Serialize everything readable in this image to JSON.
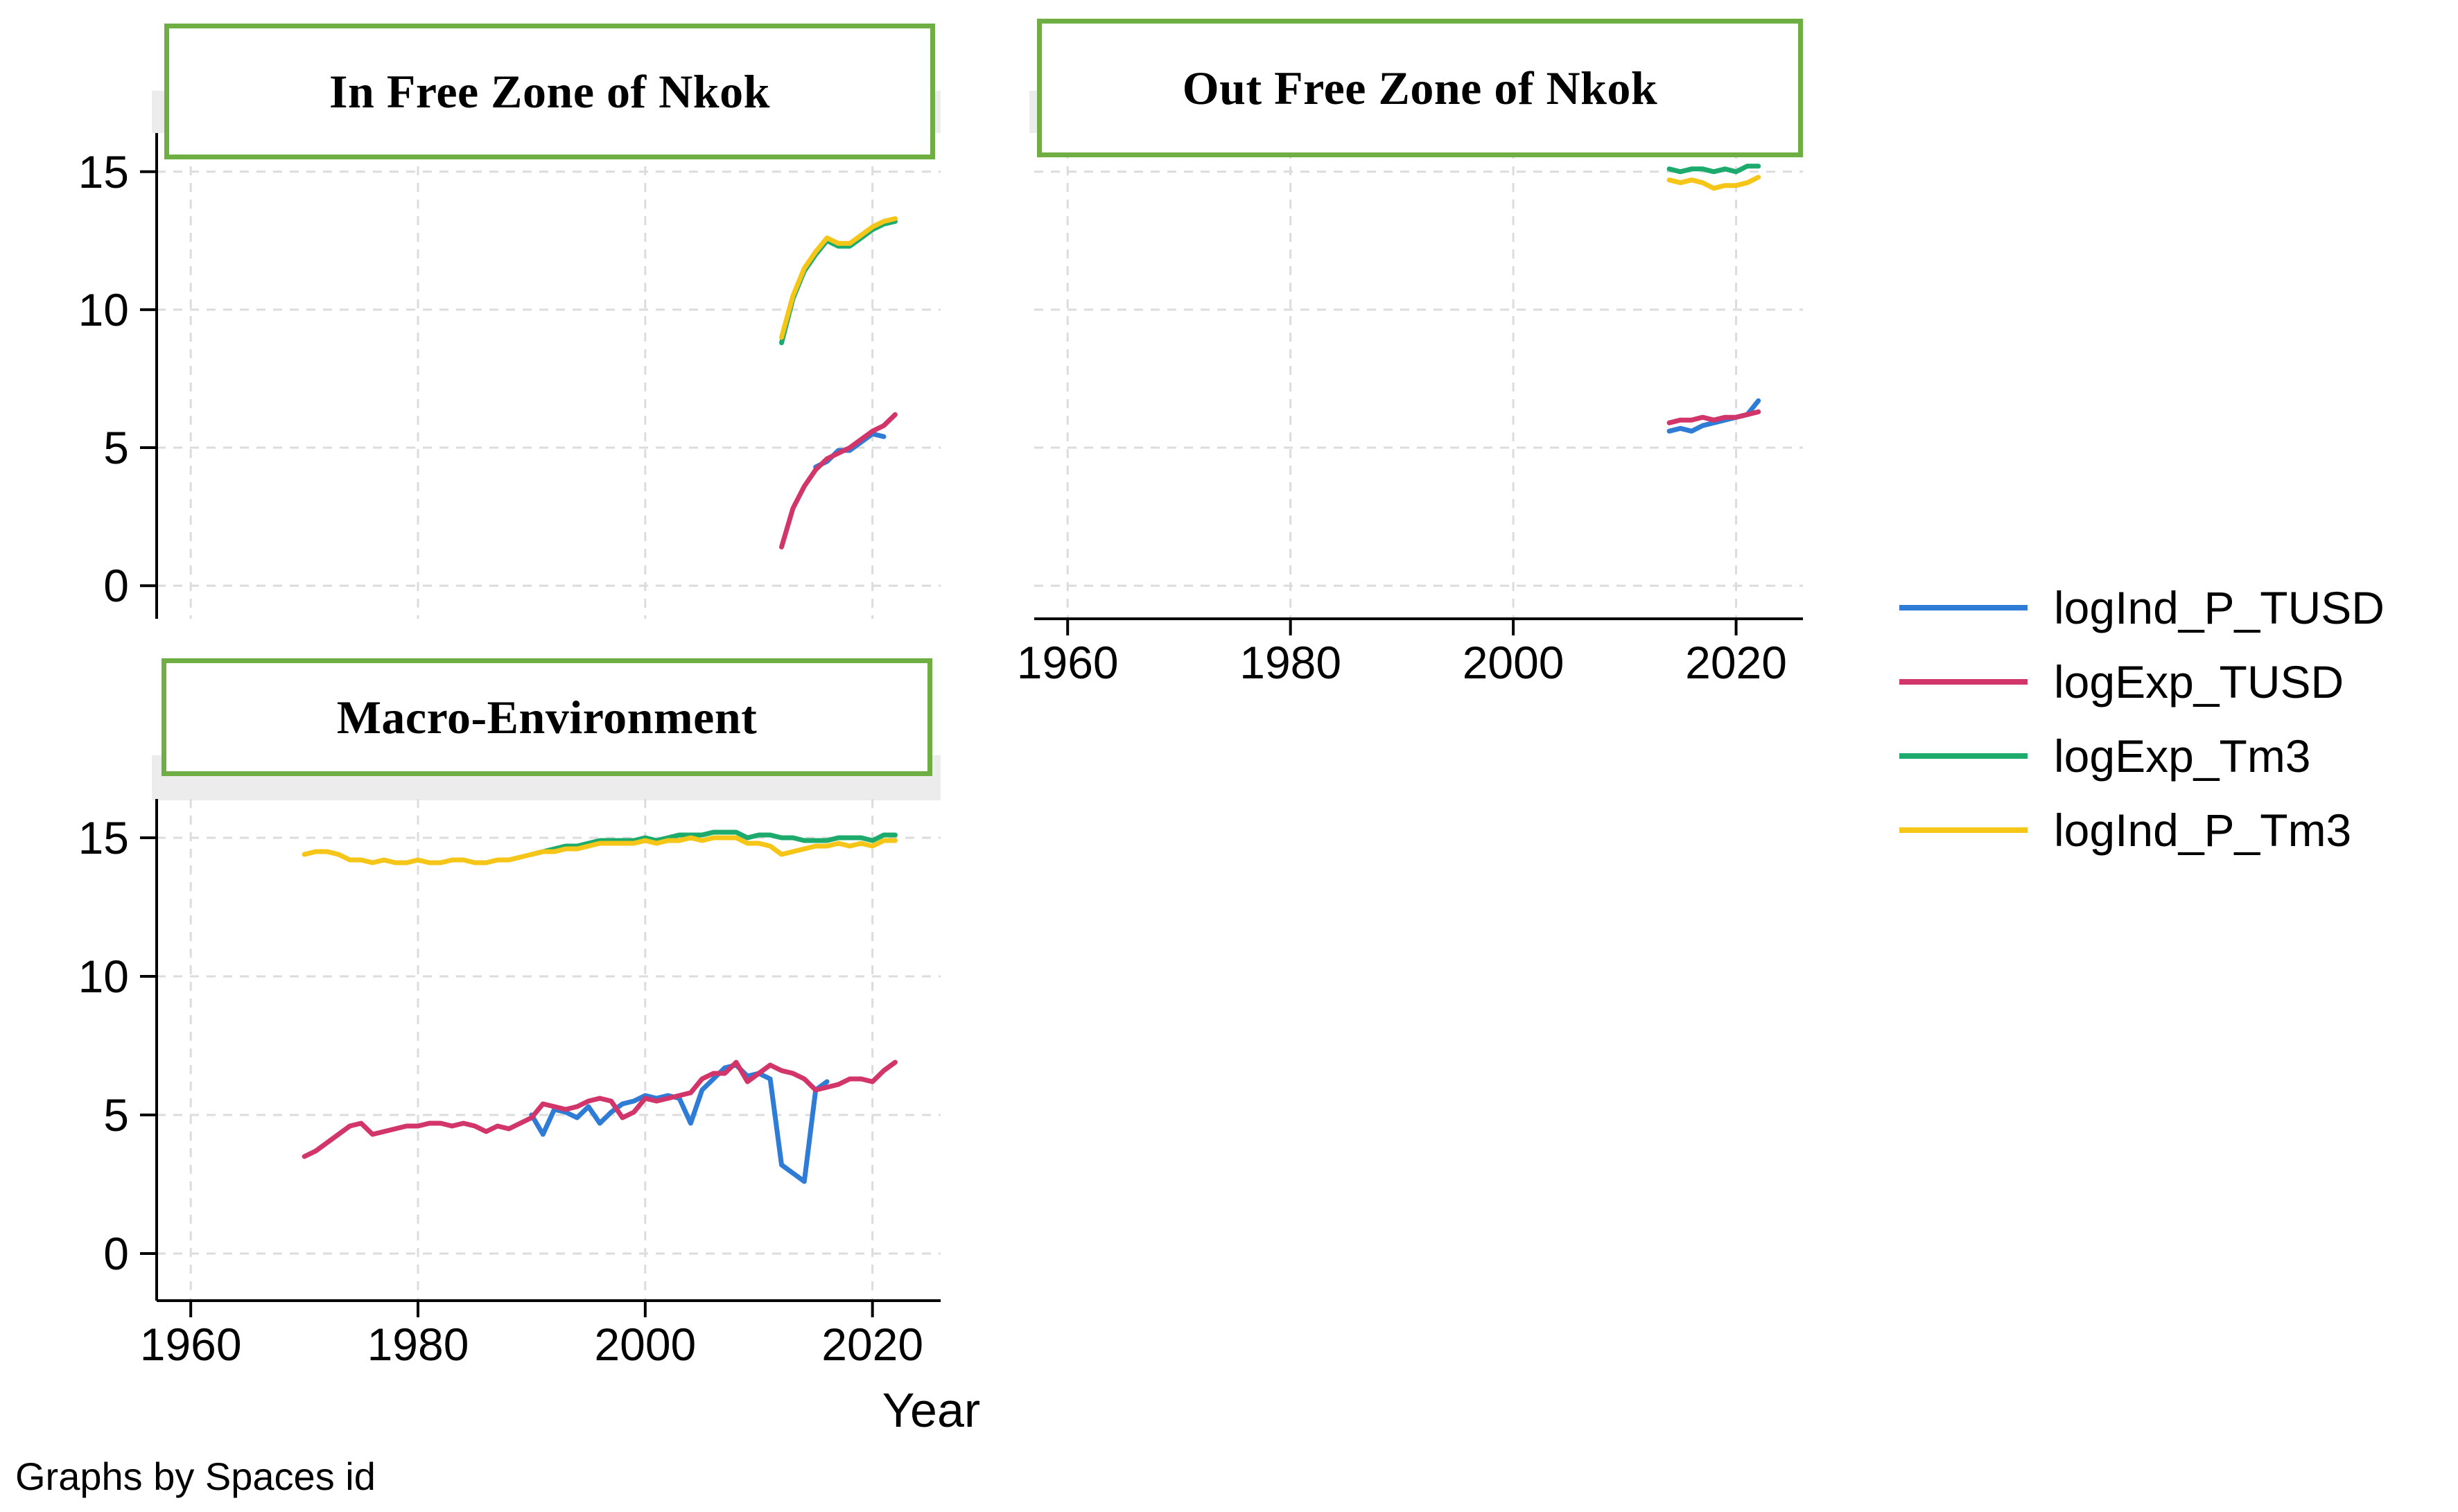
{
  "xaxis_title": "Year",
  "footer": {
    "note": "Graphs by Spaces id"
  },
  "colors": {
    "grid": "#dcdcdc",
    "axis": "#000000",
    "box_border": "#6fae43",
    "strip_bg": "#ececec",
    "series": {
      "logInd_P_TUSD": "#2e7cd6",
      "logExp_TUSD": "#d2356a",
      "logExp_Tm3": "#1cab6d",
      "logInd_P_Tm3": "#f5c518"
    }
  },
  "legend": {
    "position": "right",
    "items": [
      {
        "label": "logInd_P_TUSD",
        "series": "logInd_P_TUSD"
      },
      {
        "label": "logExp_TUSD",
        "series": "logExp_TUSD"
      },
      {
        "label": "logExp_Tm3",
        "series": "logExp_Tm3"
      },
      {
        "label": "logInd_P_Tm3",
        "series": "logInd_P_Tm3"
      }
    ]
  },
  "chart_data": [
    {
      "type": "line",
      "title": "In Free Zone of Nkok",
      "xlabel": "Year",
      "x_ticks": [
        1960,
        1980,
        2000,
        2020
      ],
      "y_ticks": [
        0,
        5,
        10,
        15
      ],
      "x_range": [
        1957,
        2026
      ],
      "y_range": [
        -1.2,
        16.4
      ],
      "grid": true,
      "series": [
        {
          "name": "logInd_P_TUSD",
          "points": [
            [
              2015,
              4.3
            ],
            [
              2016,
              4.5
            ],
            [
              2017,
              4.9
            ],
            [
              2018,
              4.9
            ],
            [
              2019,
              5.2
            ],
            [
              2020,
              5.5
            ],
            [
              2021,
              5.4
            ]
          ]
        },
        {
          "name": "logExp_TUSD",
          "points": [
            [
              2012,
              1.4
            ],
            [
              2013,
              2.8
            ],
            [
              2014,
              3.6
            ],
            [
              2015,
              4.2
            ],
            [
              2016,
              4.6
            ],
            [
              2017,
              4.8
            ],
            [
              2018,
              5.0
            ],
            [
              2019,
              5.3
            ],
            [
              2020,
              5.6
            ],
            [
              2021,
              5.8
            ],
            [
              2022,
              6.2
            ]
          ]
        },
        {
          "name": "logExp_Tm3",
          "points": [
            [
              2012,
              8.8
            ],
            [
              2013,
              10.4
            ],
            [
              2014,
              11.4
            ],
            [
              2015,
              12.0
            ],
            [
              2016,
              12.5
            ],
            [
              2017,
              12.3
            ],
            [
              2018,
              12.3
            ],
            [
              2019,
              12.6
            ],
            [
              2020,
              12.9
            ],
            [
              2021,
              13.1
            ],
            [
              2022,
              13.2
            ]
          ]
        },
        {
          "name": "logInd_P_Tm3",
          "points": [
            [
              2012,
              9.0
            ],
            [
              2013,
              10.5
            ],
            [
              2014,
              11.5
            ],
            [
              2015,
              12.1
            ],
            [
              2016,
              12.6
            ],
            [
              2017,
              12.4
            ],
            [
              2018,
              12.4
            ],
            [
              2019,
              12.7
            ],
            [
              2020,
              13.0
            ],
            [
              2021,
              13.2
            ],
            [
              2022,
              13.3
            ]
          ]
        }
      ]
    },
    {
      "type": "line",
      "title": "Out Free Zone of Nkok",
      "xlabel": "Year",
      "x_ticks": [
        1960,
        1980,
        2000,
        2020
      ],
      "y_ticks": [
        0,
        5,
        10,
        15
      ],
      "x_range": [
        1957,
        2026
      ],
      "y_range": [
        -1.2,
        16.4
      ],
      "grid": true,
      "series": [
        {
          "name": "logInd_P_TUSD",
          "points": [
            [
              2014,
              5.6
            ],
            [
              2015,
              5.7
            ],
            [
              2016,
              5.6
            ],
            [
              2017,
              5.8
            ],
            [
              2018,
              5.9
            ],
            [
              2019,
              6.0
            ],
            [
              2020,
              6.1
            ],
            [
              2021,
              6.2
            ],
            [
              2022,
              6.7
            ]
          ]
        },
        {
          "name": "logExp_TUSD",
          "points": [
            [
              2014,
              5.9
            ],
            [
              2015,
              6.0
            ],
            [
              2016,
              6.0
            ],
            [
              2017,
              6.1
            ],
            [
              2018,
              6.0
            ],
            [
              2019,
              6.1
            ],
            [
              2020,
              6.1
            ],
            [
              2021,
              6.2
            ],
            [
              2022,
              6.3
            ]
          ]
        },
        {
          "name": "logExp_Tm3",
          "points": [
            [
              2014,
              15.1
            ],
            [
              2015,
              15.0
            ],
            [
              2016,
              15.1
            ],
            [
              2017,
              15.1
            ],
            [
              2018,
              15.0
            ],
            [
              2019,
              15.1
            ],
            [
              2020,
              15.0
            ],
            [
              2021,
              15.2
            ],
            [
              2022,
              15.2
            ]
          ]
        },
        {
          "name": "logInd_P_Tm3",
          "points": [
            [
              2014,
              14.7
            ],
            [
              2015,
              14.6
            ],
            [
              2016,
              14.7
            ],
            [
              2017,
              14.6
            ],
            [
              2018,
              14.4
            ],
            [
              2019,
              14.5
            ],
            [
              2020,
              14.5
            ],
            [
              2021,
              14.6
            ],
            [
              2022,
              14.8
            ]
          ]
        }
      ]
    },
    {
      "type": "line",
      "title": "Macro-Environment",
      "xlabel": "Year",
      "x_ticks": [
        1960,
        1980,
        2000,
        2020
      ],
      "y_ticks": [
        0,
        5,
        10,
        15
      ],
      "x_range": [
        1957,
        2026
      ],
      "y_range": [
        -1.7,
        16.4
      ],
      "grid": true,
      "series": [
        {
          "name": "logInd_P_TUSD",
          "points": [
            [
              1990,
              5.0
            ],
            [
              1991,
              4.3
            ],
            [
              1992,
              5.2
            ],
            [
              1993,
              5.1
            ],
            [
              1994,
              4.9
            ],
            [
              1995,
              5.3
            ],
            [
              1996,
              4.7
            ],
            [
              1997,
              5.1
            ],
            [
              1998,
              5.4
            ],
            [
              1999,
              5.5
            ],
            [
              2000,
              5.7
            ],
            [
              2001,
              5.6
            ],
            [
              2002,
              5.7
            ],
            [
              2003,
              5.6
            ],
            [
              2004,
              4.7
            ],
            [
              2005,
              5.9
            ],
            [
              2006,
              6.3
            ],
            [
              2007,
              6.7
            ],
            [
              2008,
              6.8
            ],
            [
              2009,
              6.4
            ],
            [
              2010,
              6.5
            ],
            [
              2011,
              6.3
            ],
            [
              2012,
              3.2
            ],
            [
              2013,
              2.9
            ],
            [
              2014,
              2.6
            ],
            [
              2015,
              5.9
            ],
            [
              2016,
              6.2
            ]
          ]
        },
        {
          "name": "logExp_TUSD",
          "points": [
            [
              1970,
              3.5
            ],
            [
              1971,
              3.7
            ],
            [
              1972,
              4.0
            ],
            [
              1973,
              4.3
            ],
            [
              1974,
              4.6
            ],
            [
              1975,
              4.7
            ],
            [
              1976,
              4.3
            ],
            [
              1977,
              4.4
            ],
            [
              1978,
              4.5
            ],
            [
              1979,
              4.6
            ],
            [
              1980,
              4.6
            ],
            [
              1981,
              4.7
            ],
            [
              1982,
              4.7
            ],
            [
              1983,
              4.6
            ],
            [
              1984,
              4.7
            ],
            [
              1985,
              4.6
            ],
            [
              1986,
              4.4
            ],
            [
              1987,
              4.6
            ],
            [
              1988,
              4.5
            ],
            [
              1989,
              4.7
            ],
            [
              1990,
              4.9
            ],
            [
              1991,
              5.4
            ],
            [
              1992,
              5.3
            ],
            [
              1993,
              5.2
            ],
            [
              1994,
              5.3
            ],
            [
              1995,
              5.5
            ],
            [
              1996,
              5.6
            ],
            [
              1997,
              5.5
            ],
            [
              1998,
              4.9
            ],
            [
              1999,
              5.1
            ],
            [
              2000,
              5.6
            ],
            [
              2001,
              5.5
            ],
            [
              2002,
              5.6
            ],
            [
              2003,
              5.7
            ],
            [
              2004,
              5.8
            ],
            [
              2005,
              6.3
            ],
            [
              2006,
              6.5
            ],
            [
              2007,
              6.5
            ],
            [
              2008,
              6.9
            ],
            [
              2009,
              6.2
            ],
            [
              2010,
              6.5
            ],
            [
              2011,
              6.8
            ],
            [
              2012,
              6.6
            ],
            [
              2013,
              6.5
            ],
            [
              2014,
              6.3
            ],
            [
              2015,
              5.9
            ],
            [
              2016,
              6.0
            ],
            [
              2017,
              6.1
            ],
            [
              2018,
              6.3
            ],
            [
              2019,
              6.3
            ],
            [
              2020,
              6.2
            ],
            [
              2021,
              6.6
            ],
            [
              2022,
              6.9
            ]
          ]
        },
        {
          "name": "logExp_Tm3",
          "points": [
            [
              1990,
              14.4
            ],
            [
              1991,
              14.5
            ],
            [
              1992,
              14.6
            ],
            [
              1993,
              14.7
            ],
            [
              1994,
              14.7
            ],
            [
              1995,
              14.8
            ],
            [
              1996,
              14.9
            ],
            [
              1997,
              14.9
            ],
            [
              1998,
              14.9
            ],
            [
              1999,
              14.9
            ],
            [
              2000,
              15.0
            ],
            [
              2001,
              14.9
            ],
            [
              2002,
              15.0
            ],
            [
              2003,
              15.1
            ],
            [
              2004,
              15.1
            ],
            [
              2005,
              15.1
            ],
            [
              2006,
              15.2
            ],
            [
              2007,
              15.2
            ],
            [
              2008,
              15.2
            ],
            [
              2009,
              15.0
            ],
            [
              2010,
              15.1
            ],
            [
              2011,
              15.1
            ],
            [
              2012,
              15.0
            ],
            [
              2013,
              15.0
            ],
            [
              2014,
              14.9
            ],
            [
              2015,
              14.9
            ],
            [
              2016,
              14.9
            ],
            [
              2017,
              15.0
            ],
            [
              2018,
              15.0
            ],
            [
              2019,
              15.0
            ],
            [
              2020,
              14.9
            ],
            [
              2021,
              15.1
            ],
            [
              2022,
              15.1
            ]
          ]
        },
        {
          "name": "logInd_P_Tm3",
          "points": [
            [
              1970,
              14.4
            ],
            [
              1971,
              14.5
            ],
            [
              1972,
              14.5
            ],
            [
              1973,
              14.4
            ],
            [
              1974,
              14.2
            ],
            [
              1975,
              14.2
            ],
            [
              1976,
              14.1
            ],
            [
              1977,
              14.2
            ],
            [
              1978,
              14.1
            ],
            [
              1979,
              14.1
            ],
            [
              1980,
              14.2
            ],
            [
              1981,
              14.1
            ],
            [
              1982,
              14.1
            ],
            [
              1983,
              14.2
            ],
            [
              1984,
              14.2
            ],
            [
              1985,
              14.1
            ],
            [
              1986,
              14.1
            ],
            [
              1987,
              14.2
            ],
            [
              1988,
              14.2
            ],
            [
              1989,
              14.3
            ],
            [
              1990,
              14.4
            ],
            [
              1991,
              14.5
            ],
            [
              1992,
              14.5
            ],
            [
              1993,
              14.6
            ],
            [
              1994,
              14.6
            ],
            [
              1995,
              14.7
            ],
            [
              1996,
              14.8
            ],
            [
              1997,
              14.8
            ],
            [
              1998,
              14.8
            ],
            [
              1999,
              14.8
            ],
            [
              2000,
              14.9
            ],
            [
              2001,
              14.8
            ],
            [
              2002,
              14.9
            ],
            [
              2003,
              14.9
            ],
            [
              2004,
              15.0
            ],
            [
              2005,
              14.9
            ],
            [
              2006,
              15.0
            ],
            [
              2007,
              15.0
            ],
            [
              2008,
              15.0
            ],
            [
              2009,
              14.8
            ],
            [
              2010,
              14.8
            ],
            [
              2011,
              14.7
            ],
            [
              2012,
              14.4
            ],
            [
              2013,
              14.5
            ],
            [
              2014,
              14.6
            ],
            [
              2015,
              14.7
            ],
            [
              2016,
              14.7
            ],
            [
              2017,
              14.8
            ],
            [
              2018,
              14.7
            ],
            [
              2019,
              14.8
            ],
            [
              2020,
              14.7
            ],
            [
              2021,
              14.9
            ],
            [
              2022,
              14.9
            ]
          ]
        }
      ]
    }
  ]
}
